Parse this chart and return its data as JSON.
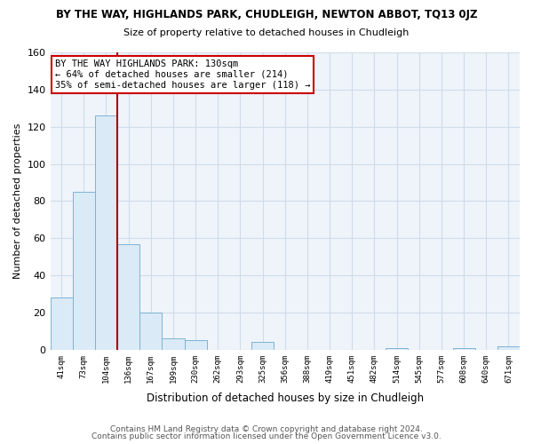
{
  "title": "BY THE WAY, HIGHLANDS PARK, CHUDLEIGH, NEWTON ABBOT, TQ13 0JZ",
  "subtitle": "Size of property relative to detached houses in Chudleigh",
  "xlabel": "Distribution of detached houses by size in Chudleigh",
  "ylabel": "Number of detached properties",
  "bar_labels": [
    "41sqm",
    "73sqm",
    "104sqm",
    "136sqm",
    "167sqm",
    "199sqm",
    "230sqm",
    "262sqm",
    "293sqm",
    "325sqm",
    "356sqm",
    "388sqm",
    "419sqm",
    "451sqm",
    "482sqm",
    "514sqm",
    "545sqm",
    "577sqm",
    "608sqm",
    "640sqm",
    "671sqm"
  ],
  "bar_values": [
    28,
    85,
    126,
    57,
    20,
    6,
    5,
    0,
    0,
    4,
    0,
    0,
    0,
    0,
    0,
    1,
    0,
    0,
    1,
    0,
    2
  ],
  "bar_color": "#daeaf6",
  "bar_edge_color": "#7fb3d3",
  "vline_color": "#aa0000",
  "ylim": [
    0,
    160
  ],
  "yticks": [
    0,
    20,
    40,
    60,
    80,
    100,
    120,
    140,
    160
  ],
  "annotation_text": "BY THE WAY HIGHLANDS PARK: 130sqm\n← 64% of detached houses are smaller (214)\n35% of semi-detached houses are larger (118) →",
  "annotation_box_color": "#ffffff",
  "annotation_box_edge": "#cc0000",
  "footer1": "Contains HM Land Registry data © Crown copyright and database right 2024.",
  "footer2": "Contains public sector information licensed under the Open Government Licence v3.0.",
  "bg_color": "#ffffff",
  "grid_color": "#d0dce8",
  "plot_bg_color": "#eef4fa"
}
